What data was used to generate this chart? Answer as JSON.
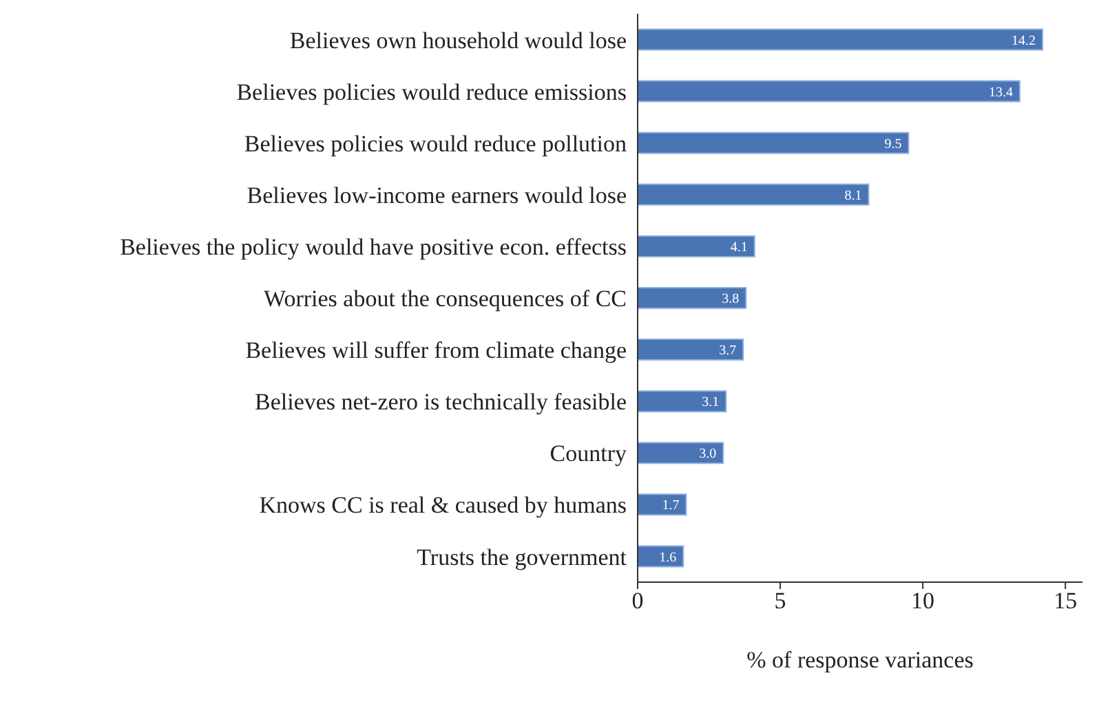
{
  "chart_data": {
    "type": "bar",
    "orientation": "horizontal",
    "xlabel": "% of response variances",
    "categories": [
      "Believes own household would lose",
      "Believes policies would reduce emissions",
      "Believes policies would reduce pollution",
      "Believes low-income earners would lose",
      "Believes the policy would have positive econ. effectss",
      "Worries about the consequences of CC",
      "Believes will suffer from climate change",
      "Believes net-zero is technically feasible",
      "Country",
      "Knows CC is real & caused by humans",
      "Trusts the government"
    ],
    "values": [
      14.2,
      13.4,
      9.5,
      8.1,
      4.1,
      3.8,
      3.7,
      3.1,
      3.0,
      1.7,
      1.6
    ],
    "value_labels": [
      "14.2",
      "13.4",
      "9.5",
      "8.1",
      "4.1",
      "3.8",
      "3.7",
      "3.1",
      "3.0",
      "1.7",
      "1.6"
    ],
    "color": "#4a74b4",
    "xlim": [
      0,
      15.6
    ],
    "xticks": [
      0,
      5,
      10,
      15
    ]
  }
}
